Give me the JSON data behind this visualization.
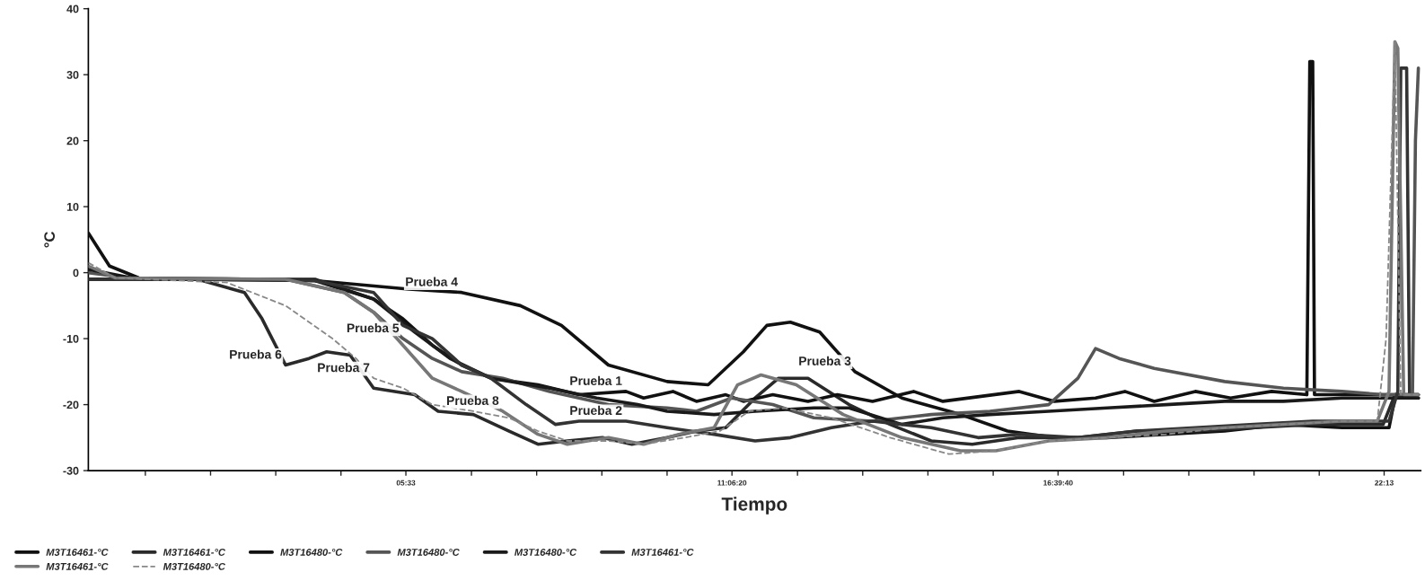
{
  "chart_data": {
    "type": "line",
    "xlabel": "Tiempo",
    "ylabel": "°C",
    "xlim": [
      0.14,
      22.84
    ],
    "ylim": [
      -30,
      40
    ],
    "xticks": [
      {
        "value": 1.111,
        "label": null
      },
      {
        "value": 2.222,
        "label": null
      },
      {
        "value": 3.333,
        "label": null
      },
      {
        "value": 4.444,
        "label": null
      },
      {
        "value": 5.55,
        "label": "05:33"
      },
      {
        "value": 6.667,
        "label": null
      },
      {
        "value": 7.778,
        "label": null
      },
      {
        "value": 8.889,
        "label": null
      },
      {
        "value": 10.0,
        "label": null
      },
      {
        "value": 11.1056,
        "label": "11:06:20"
      },
      {
        "value": 12.222,
        "label": null
      },
      {
        "value": 13.333,
        "label": null
      },
      {
        "value": 14.444,
        "label": null
      },
      {
        "value": 15.556,
        "label": null
      },
      {
        "value": 16.6611,
        "label": "16:39:40"
      },
      {
        "value": 17.778,
        "label": null
      },
      {
        "value": 18.889,
        "label": null
      },
      {
        "value": 20.0,
        "label": null
      },
      {
        "value": 21.111,
        "label": null
      },
      {
        "value": 22.2167,
        "label": "22:13"
      }
    ],
    "yticks": [
      -30,
      -20,
      -10,
      0,
      10,
      20,
      30,
      40
    ],
    "legend": "bottom",
    "grid": false,
    "series": [
      {
        "name": "M3T16461-°C",
        "color": "#111111",
        "line_style": "solid",
        "x": [
          0.14,
          2,
          4,
          5.6,
          6.5,
          7.5,
          8.2,
          9,
          10.0,
          10.7,
          11.3,
          11.7,
          12.1,
          12.6,
          13.2,
          14,
          15,
          15.8,
          16.6,
          17.5,
          18.5,
          19.5,
          20.5,
          21.5,
          22.3,
          22.4,
          22.8
        ],
        "values": [
          -1,
          -1,
          -1.2,
          -2.5,
          -3,
          -5,
          -8,
          -14,
          -16.5,
          -17,
          -12,
          -8,
          -7.5,
          -9,
          -15,
          -19,
          -21.5,
          -24,
          -25,
          -25,
          -24.5,
          -24,
          -23,
          -23.5,
          -23.5,
          -19,
          -19
        ]
      },
      {
        "name": "M3T16461-°C",
        "color": "#2a2a2a",
        "line_style": "solid",
        "x": [
          0.14,
          2,
          2.8,
          3.1,
          3.5,
          3.9,
          4.2,
          4.6,
          5.0,
          5.7,
          6.1,
          6.7,
          7.3,
          7.8,
          8.3,
          8.9,
          9.4,
          10,
          10.5,
          11.0,
          11.5,
          11.9,
          12.4,
          13.1,
          13.8,
          14.5,
          15.2,
          16,
          17,
          18,
          19,
          20,
          21,
          22.2,
          22.4,
          22.8
        ],
        "values": [
          -1,
          -1,
          -3,
          -7,
          -14,
          -13,
          -12,
          -12.5,
          -17.5,
          -18.5,
          -21,
          -21.5,
          -24,
          -26,
          -25.5,
          -25,
          -26,
          -25,
          -24,
          -23.5,
          -19,
          -16,
          -16,
          -20,
          -23,
          -25.5,
          -26,
          -25,
          -25,
          -24,
          -24,
          -23.5,
          -23,
          -23,
          -18.5,
          -19
        ]
      },
      {
        "name": "M3T16480-°C",
        "color": "#111111",
        "line_style": "solid",
        "x": [
          0.14,
          0.5,
          1,
          3,
          4,
          5,
          5.5,
          6,
          6.5,
          7,
          7.8,
          8.5,
          9.3,
          9.6,
          10.1,
          10.5,
          11.0,
          11.3,
          11.8,
          12.4,
          12.9,
          13.5,
          14.2,
          14.7,
          16,
          16.6,
          17.3,
          17.8,
          18.3,
          19,
          19.6,
          20.3,
          20.9,
          20.95,
          21.0,
          21.03,
          21.8,
          22.8
        ],
        "values": [
          6,
          1,
          -0.8,
          -1,
          -1.2,
          -4,
          -7,
          -11,
          -14,
          -16,
          -17,
          -18.5,
          -18,
          -19,
          -18,
          -19.5,
          -18.5,
          -19.5,
          -18.5,
          -19.5,
          -18.5,
          -19.5,
          -18,
          -19.5,
          -18,
          -19.5,
          -19,
          -18,
          -19.5,
          -18,
          -19,
          -18,
          -18.5,
          32,
          32,
          -18.5,
          -18.5,
          -18.5
        ]
      },
      {
        "name": "M3T16480-°C",
        "color": "#555555",
        "line_style": "solid",
        "x": [
          0.14,
          1,
          3.5,
          4.5,
          5,
          5.5,
          6,
          6.5,
          7.2,
          8.0,
          9,
          10,
          10.5,
          11.1,
          11.8,
          12.5,
          13.5,
          14.5,
          15.5,
          16.5,
          17,
          17.3,
          17.7,
          18.3,
          19.5,
          20.5,
          21.5,
          22.2,
          22.7,
          22.75,
          22.8
        ],
        "values": [
          0,
          -1,
          -1,
          -3,
          -6,
          -10,
          -13,
          -15,
          -16,
          -18,
          -20,
          -20.5,
          -21,
          -19,
          -20,
          -22,
          -22.5,
          -21.5,
          -21,
          -20,
          -16,
          -11.5,
          -13,
          -14.5,
          -16.5,
          -17.5,
          -18,
          -18.5,
          -18.5,
          20,
          31
        ]
      },
      {
        "name": "M3T16480-°C",
        "color": "#1a1a1a",
        "line_style": "solid",
        "x": [
          0.14,
          1,
          4,
          5,
          5.7,
          6.3,
          7,
          8,
          8.8,
          9.5,
          10,
          10.8,
          11.5,
          12.5,
          13.1,
          14,
          14.7,
          15.5,
          16.5,
          17.5,
          18.5,
          19.5,
          20.5,
          21.5,
          22.8
        ],
        "values": [
          0.5,
          -1,
          -1,
          -4,
          -9,
          -13,
          -16,
          -17.5,
          -19,
          -20,
          -21,
          -21.5,
          -21,
          -20.5,
          -20.5,
          -23,
          -22,
          -21.5,
          -21,
          -20.5,
          -20,
          -19.5,
          -19.5,
          -19,
          -19
        ]
      },
      {
        "name": "M3T16461-°C",
        "color": "#333333",
        "line_style": "solid",
        "x": [
          0.14,
          2,
          4,
          5.0,
          5.5,
          6.0,
          6.5,
          7,
          7.6,
          8.1,
          8.5,
          9.3,
          10,
          10.8,
          11.5,
          12.1,
          12.8,
          13.5,
          14.5,
          15.3,
          16,
          17,
          18,
          19,
          20,
          21,
          22.3,
          22.45,
          22.5,
          22.6,
          22.65,
          22.8
        ],
        "values": [
          -1,
          -1,
          -1.2,
          -3,
          -8,
          -10,
          -14,
          -16,
          -20,
          -23,
          -22.5,
          -22.5,
          -23.5,
          -24.5,
          -25.5,
          -25,
          -23.5,
          -22.5,
          -23.5,
          -25,
          -24.5,
          -25,
          -24,
          -23.5,
          -23,
          -22.5,
          -22.5,
          -18,
          31,
          31,
          -18.5,
          -18.5
        ]
      },
      {
        "name": "M3T16461-°C",
        "color": "#777777",
        "line_style": "solid",
        "x": [
          0.14,
          0.6,
          3.5,
          4.5,
          5,
          5.5,
          6.0,
          6.5,
          7.2,
          7.8,
          8.3,
          9,
          9.6,
          10.2,
          10.8,
          11.2,
          11.6,
          12.2,
          13,
          14,
          15,
          15.6,
          16.5,
          17.5,
          18.5,
          19.5,
          20.5,
          21.5,
          22.1,
          22.3,
          22.4,
          22.45,
          22.55,
          22.8
        ],
        "values": [
          1,
          -0.8,
          -1,
          -3,
          -6,
          -11,
          -16,
          -18,
          -21,
          -24.5,
          -26,
          -25,
          -26,
          -24.5,
          -23.5,
          -17,
          -15.5,
          -17,
          -21.5,
          -25,
          -27,
          -27,
          -25.5,
          -25,
          -24,
          -23.5,
          -23,
          -22.5,
          -22.5,
          -18,
          35,
          34,
          -18.5,
          -18.5
        ]
      },
      {
        "name": "M3T16480-°C",
        "color": "#888888",
        "line_style": "dashed",
        "x": [
          0.14,
          0.6,
          2.5,
          3.5,
          4.3,
          4.7,
          5.0,
          5.5,
          6.0,
          6.7,
          7.3,
          7.8,
          8.3,
          9,
          9.6,
          10.3,
          10.9,
          11.4,
          12,
          12.8,
          13.8,
          14.8,
          15.6,
          16.5,
          17.5,
          18.5,
          19.5,
          20.5,
          21.5,
          22.1,
          22.25,
          22.4,
          22.5,
          22.8
        ],
        "values": [
          1.5,
          -0.8,
          -1.5,
          -5,
          -10,
          -13,
          -16,
          -17.5,
          -20,
          -21,
          -22,
          -24,
          -25.5,
          -25.5,
          -26,
          -25,
          -24,
          -21,
          -20.5,
          -22,
          -25,
          -27.5,
          -27,
          -25.5,
          -25,
          -24.5,
          -23.5,
          -23,
          -22.5,
          -22.5,
          -10,
          35,
          -18.5,
          -18.5
        ]
      }
    ],
    "annotations": [
      {
        "text": "Prueba 4",
        "x": 6.5,
        "y": -3
      },
      {
        "text": "Prueba 5",
        "x": 5.5,
        "y": -10
      },
      {
        "text": "Prueba 2",
        "x": 9.3,
        "y": -22.5
      },
      {
        "text": "Prueba 3",
        "x": 13.2,
        "y": -15
      },
      {
        "text": "Prueba 1",
        "x": 9.3,
        "y": -18
      },
      {
        "text": "Prueba 6",
        "x": 3.5,
        "y": -14
      },
      {
        "text": "Prueba 7",
        "x": 5.0,
        "y": -16
      },
      {
        "text": "Prueba 8",
        "x": 7.2,
        "y": -21
      }
    ]
  }
}
